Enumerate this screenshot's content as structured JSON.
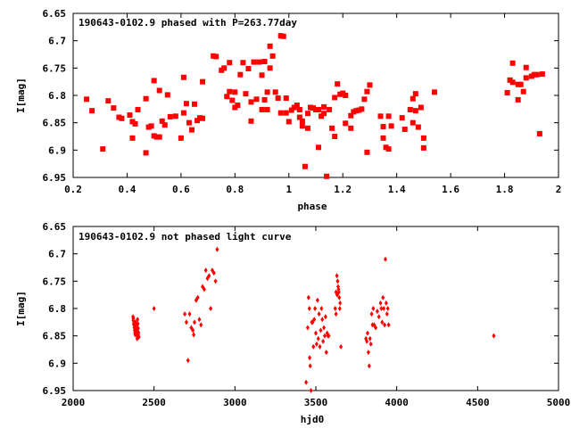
{
  "chart_data": [
    {
      "type": "scatter",
      "title": "190643-0102.9 phased with P=263.77day",
      "xlabel": "phase",
      "ylabel": "I[mag]",
      "xlim": [
        0.2,
        2.0
      ],
      "ylim": [
        6.95,
        6.65
      ],
      "y_inverted": true,
      "x_ticks": [
        "0.2",
        "0.4",
        "0.6",
        "0.8",
        "1",
        "1.2",
        "1.4",
        "1.6",
        "1.8",
        "2"
      ],
      "x_tick_values": [
        0.2,
        0.4,
        0.6,
        0.8,
        1.0,
        1.2,
        1.4,
        1.6,
        1.8,
        2.0
      ],
      "y_ticks": [
        "6.65",
        "6.7",
        "6.75",
        "6.8",
        "6.85",
        "6.9",
        "6.95"
      ],
      "y_tick_values": [
        6.65,
        6.7,
        6.75,
        6.8,
        6.85,
        6.9,
        6.95
      ],
      "marker": "square",
      "color": "#ff0000",
      "series": [
        {
          "points": [
            [
              0.25,
              6.807
            ],
            [
              0.27,
              6.828
            ],
            [
              0.31,
              6.898
            ],
            [
              0.33,
              6.81
            ],
            [
              0.35,
              6.823
            ],
            [
              0.37,
              6.84
            ],
            [
              0.38,
              6.842
            ],
            [
              0.41,
              6.836
            ],
            [
              0.42,
              6.848
            ],
            [
              0.42,
              6.878
            ],
            [
              0.43,
              6.852
            ],
            [
              0.44,
              6.826
            ],
            [
              0.47,
              6.806
            ],
            [
              0.47,
              6.905
            ],
            [
              0.48,
              6.858
            ],
            [
              0.49,
              6.856
            ],
            [
              0.5,
              6.773
            ],
            [
              0.5,
              6.874
            ],
            [
              0.51,
              6.876
            ],
            [
              0.52,
              6.791
            ],
            [
              0.52,
              6.876
            ],
            [
              0.53,
              6.847
            ],
            [
              0.54,
              6.854
            ],
            [
              0.55,
              6.799
            ],
            [
              0.56,
              6.839
            ],
            [
              0.58,
              6.838
            ],
            [
              0.6,
              6.878
            ],
            [
              0.61,
              6.767
            ],
            [
              0.61,
              6.832
            ],
            [
              0.62,
              6.815
            ],
            [
              0.63,
              6.85
            ],
            [
              0.64,
              6.863
            ],
            [
              0.65,
              6.816
            ],
            [
              0.66,
              6.846
            ],
            [
              0.67,
              6.841
            ],
            [
              0.68,
              6.842
            ],
            [
              0.68,
              6.775
            ],
            [
              0.72,
              6.728
            ],
            [
              0.73,
              6.729
            ],
            [
              0.75,
              6.754
            ],
            [
              0.76,
              6.75
            ],
            [
              0.77,
              6.802
            ],
            [
              0.78,
              6.74
            ],
            [
              0.78,
              6.793
            ],
            [
              0.79,
              6.809
            ],
            [
              0.8,
              6.794
            ],
            [
              0.8,
              6.822
            ],
            [
              0.81,
              6.818
            ],
            [
              0.82,
              6.762
            ],
            [
              0.83,
              6.74
            ],
            [
              0.84,
              6.797
            ],
            [
              0.85,
              6.751
            ],
            [
              0.86,
              6.812
            ],
            [
              0.86,
              6.847
            ],
            [
              0.87,
              6.739
            ],
            [
              0.88,
              6.807
            ],
            [
              0.89,
              6.739
            ],
            [
              0.9,
              6.763
            ],
            [
              0.9,
              6.826
            ],
            [
              0.91,
              6.808
            ],
            [
              0.91,
              6.738
            ],
            [
              0.92,
              6.794
            ],
            [
              0.92,
              6.826
            ],
            [
              0.93,
              6.71
            ],
            [
              0.93,
              6.75
            ],
            [
              0.94,
              6.728
            ],
            [
              0.95,
              6.794
            ],
            [
              0.96,
              6.805
            ],
            [
              0.97,
              6.691
            ],
            [
              0.97,
              6.832
            ],
            [
              0.98,
              6.692
            ],
            [
              0.99,
              6.805
            ],
            [
              0.99,
              6.832
            ],
            [
              1.0,
              6.848
            ],
            [
              1.01,
              6.827
            ],
            [
              1.02,
              6.822
            ],
            [
              1.03,
              6.818
            ],
            [
              1.04,
              6.826
            ],
            [
              1.04,
              6.84
            ],
            [
              1.05,
              6.847
            ],
            [
              1.05,
              6.856
            ],
            [
              1.06,
              6.93
            ],
            [
              1.07,
              6.833
            ],
            [
              1.07,
              6.86
            ],
            [
              1.08,
              6.822
            ],
            [
              1.09,
              6.823
            ],
            [
              1.1,
              6.826
            ],
            [
              1.11,
              6.826
            ],
            [
              1.11,
              6.895
            ],
            [
              1.12,
              6.838
            ],
            [
              1.13,
              6.821
            ],
            [
              1.13,
              6.833
            ],
            [
              1.14,
              6.948
            ],
            [
              1.15,
              6.826
            ],
            [
              1.16,
              6.86
            ],
            [
              1.17,
              6.804
            ],
            [
              1.17,
              6.875
            ],
            [
              1.18,
              6.779
            ],
            [
              1.19,
              6.798
            ],
            [
              1.2,
              6.796
            ],
            [
              1.21,
              6.8
            ],
            [
              1.21,
              6.851
            ],
            [
              1.23,
              6.837
            ],
            [
              1.23,
              6.86
            ],
            [
              1.24,
              6.83
            ],
            [
              1.25,
              6.828
            ],
            [
              1.26,
              6.827
            ],
            [
              1.27,
              6.825
            ],
            [
              1.28,
              6.807
            ],
            [
              1.29,
              6.793
            ],
            [
              1.29,
              6.904
            ],
            [
              1.3,
              6.781
            ],
            [
              1.34,
              6.838
            ],
            [
              1.35,
              6.857
            ],
            [
              1.35,
              6.878
            ],
            [
              1.36,
              6.895
            ],
            [
              1.37,
              6.838
            ],
            [
              1.37,
              6.898
            ],
            [
              1.38,
              6.856
            ],
            [
              1.42,
              6.841
            ],
            [
              1.43,
              6.862
            ],
            [
              1.45,
              6.826
            ],
            [
              1.46,
              6.85
            ],
            [
              1.46,
              6.806
            ],
            [
              1.47,
              6.797
            ],
            [
              1.47,
              6.828
            ],
            [
              1.48,
              6.858
            ],
            [
              1.49,
              6.822
            ],
            [
              1.5,
              6.896
            ],
            [
              1.5,
              6.878
            ],
            [
              1.54,
              6.794
            ],
            [
              1.81,
              6.795
            ],
            [
              1.82,
              6.772
            ],
            [
              1.83,
              6.776
            ],
            [
              1.83,
              6.741
            ],
            [
              1.85,
              6.808
            ],
            [
              1.85,
              6.78
            ],
            [
              1.86,
              6.78
            ],
            [
              1.87,
              6.793
            ],
            [
              1.88,
              6.749
            ],
            [
              1.88,
              6.768
            ],
            [
              1.9,
              6.765
            ],
            [
              1.91,
              6.762
            ],
            [
              1.92,
              6.762
            ],
            [
              1.93,
              6.87
            ],
            [
              1.94,
              6.761
            ]
          ]
        }
      ]
    },
    {
      "type": "scatter",
      "title": "190643-0102.9 not phased light curve",
      "xlabel": "hjd0",
      "ylabel": "I[mag]",
      "xlim": [
        2000,
        5000
      ],
      "ylim": [
        6.95,
        6.65
      ],
      "y_inverted": true,
      "x_ticks": [
        "2000",
        "2500",
        "3000",
        "3500",
        "4000",
        "4500",
        "5000"
      ],
      "x_tick_values": [
        2000,
        2500,
        3000,
        3500,
        4000,
        4500,
        5000
      ],
      "y_ticks": [
        "6.65",
        "6.7",
        "6.75",
        "6.8",
        "6.85",
        "6.9",
        "6.95"
      ],
      "y_tick_values": [
        6.65,
        6.7,
        6.75,
        6.8,
        6.85,
        6.9,
        6.95
      ],
      "marker": "diamond",
      "color": "#ff0000",
      "series": [
        {
          "points": [
            [
              2370,
              6.815
            ],
            [
              2372,
              6.822
            ],
            [
              2374,
              6.828
            ],
            [
              2376,
              6.83
            ],
            [
              2378,
              6.835
            ],
            [
              2380,
              6.84
            ],
            [
              2382,
              6.845
            ],
            [
              2384,
              6.848
            ],
            [
              2386,
              6.825
            ],
            [
              2388,
              6.832
            ],
            [
              2390,
              6.838
            ],
            [
              2392,
              6.842
            ],
            [
              2394,
              6.85
            ],
            [
              2396,
              6.855
            ],
            [
              2398,
              6.82
            ],
            [
              2400,
              6.828
            ],
            [
              2402,
              6.836
            ],
            [
              2404,
              6.844
            ],
            [
              2406,
              6.852
            ],
            [
              2372,
              6.818
            ],
            [
              2378,
              6.826
            ],
            [
              2384,
              6.834
            ],
            [
              2390,
              6.846
            ],
            [
              2396,
              6.84
            ],
            [
              2402,
              6.848
            ],
            [
              2500,
              6.8
            ],
            [
              2690,
              6.81
            ],
            [
              2700,
              6.825
            ],
            [
              2710,
              6.895
            ],
            [
              2720,
              6.81
            ],
            [
              2730,
              6.835
            ],
            [
              2740,
              6.84
            ],
            [
              2745,
              6.848
            ],
            [
              2750,
              6.825
            ],
            [
              2760,
              6.785
            ],
            [
              2770,
              6.78
            ],
            [
              2780,
              6.82
            ],
            [
              2790,
              6.83
            ],
            [
              2800,
              6.76
            ],
            [
              2810,
              6.765
            ],
            [
              2820,
              6.73
            ],
            [
              2830,
              6.745
            ],
            [
              2840,
              6.74
            ],
            [
              2850,
              6.8
            ],
            [
              2860,
              6.73
            ],
            [
              2870,
              6.735
            ],
            [
              2880,
              6.75
            ],
            [
              2890,
              6.692
            ],
            [
              3440,
              6.935
            ],
            [
              3450,
              6.835
            ],
            [
              3455,
              6.78
            ],
            [
              3460,
              6.8
            ],
            [
              3462,
              6.89
            ],
            [
              3465,
              6.905
            ],
            [
              3470,
              6.95
            ],
            [
              3475,
              6.825
            ],
            [
              3480,
              6.825
            ],
            [
              3485,
              6.87
            ],
            [
              3490,
              6.82
            ],
            [
              3495,
              6.8
            ],
            [
              3500,
              6.845
            ],
            [
              3505,
              6.865
            ],
            [
              3510,
              6.785
            ],
            [
              3515,
              6.855
            ],
            [
              3520,
              6.81
            ],
            [
              3525,
              6.87
            ],
            [
              3530,
              6.84
            ],
            [
              3535,
              6.8
            ],
            [
              3540,
              6.82
            ],
            [
              3545,
              6.86
            ],
            [
              3550,
              6.835
            ],
            [
              3555,
              6.85
            ],
            [
              3560,
              6.815
            ],
            [
              3565,
              6.88
            ],
            [
              3570,
              6.845
            ],
            [
              3575,
              6.85
            ],
            [
              3580,
              6.85
            ],
            [
              3620,
              6.8
            ],
            [
              3625,
              6.77
            ],
            [
              3630,
              6.74
            ],
            [
              3635,
              6.75
            ],
            [
              3640,
              6.765
            ],
            [
              3645,
              6.78
            ],
            [
              3650,
              6.79
            ],
            [
              3655,
              6.87
            ],
            [
              3625,
              6.81
            ],
            [
              3632,
              6.775
            ],
            [
              3638,
              6.76
            ],
            [
              3642,
              6.77
            ],
            [
              3648,
              6.8
            ],
            [
              3810,
              6.855
            ],
            [
              3815,
              6.86
            ],
            [
              3820,
              6.845
            ],
            [
              3825,
              6.88
            ],
            [
              3830,
              6.905
            ],
            [
              3835,
              6.855
            ],
            [
              3840,
              6.865
            ],
            [
              3845,
              6.81
            ],
            [
              3850,
              6.83
            ],
            [
              3855,
              6.8
            ],
            [
              3860,
              6.83
            ],
            [
              3870,
              6.835
            ],
            [
              3880,
              6.805
            ],
            [
              3890,
              6.815
            ],
            [
              3900,
              6.79
            ],
            [
              3905,
              6.8
            ],
            [
              3910,
              6.825
            ],
            [
              3915,
              6.78
            ],
            [
              3920,
              6.8
            ],
            [
              3925,
              6.83
            ],
            [
              3930,
              6.71
            ],
            [
              3935,
              6.79
            ],
            [
              3940,
              6.81
            ],
            [
              3945,
              6.8
            ],
            [
              3950,
              6.83
            ],
            [
              4600,
              6.85
            ]
          ]
        }
      ]
    }
  ]
}
